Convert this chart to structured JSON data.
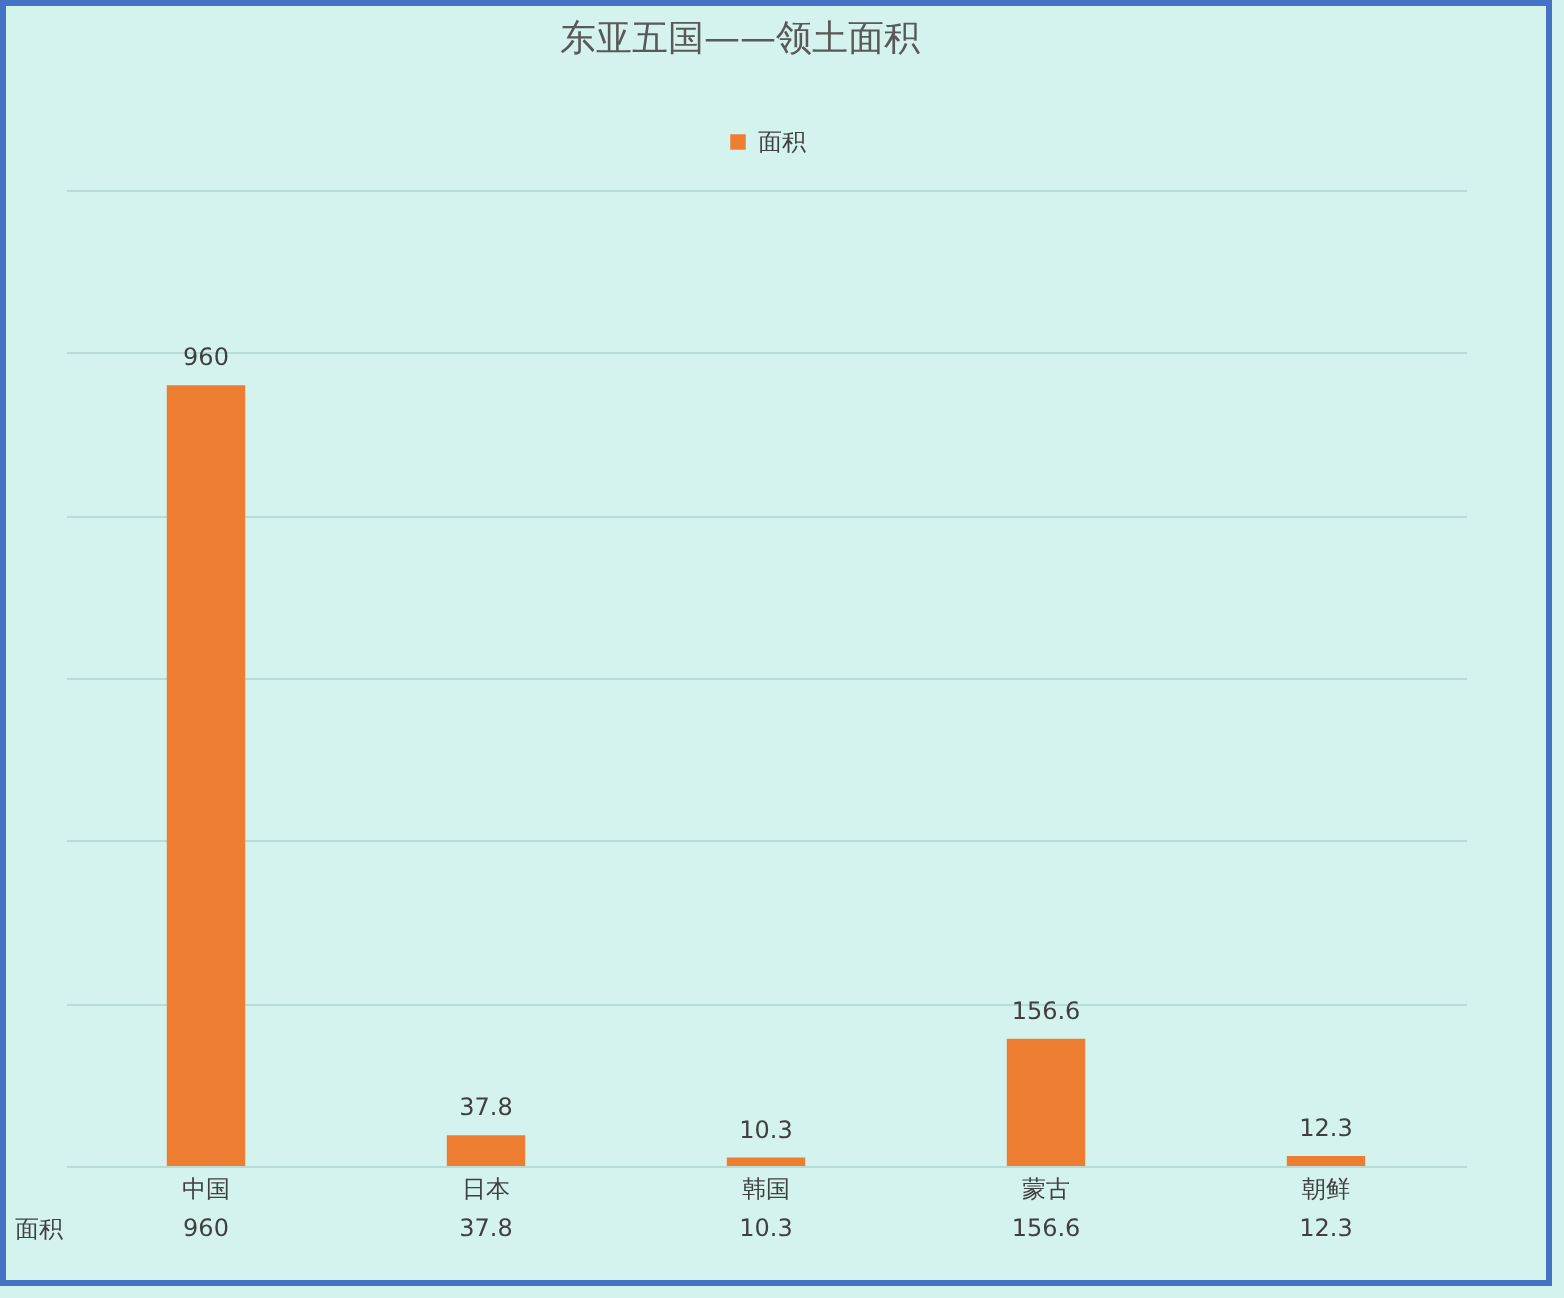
{
  "chart_data": {
    "type": "bar",
    "title": "东亚五国——领土面积",
    "categories": [
      "中国",
      "日本",
      "韩国",
      "蒙古",
      "朝鲜"
    ],
    "series": [
      {
        "name": "面积",
        "color": "#ed7d31",
        "values": [
          960,
          37.8,
          10.3,
          156.6,
          12.3
        ],
        "value_labels": [
          "960",
          "37.8",
          "10.3",
          "156.6",
          "12.3"
        ]
      }
    ],
    "ylim": [
      0,
      1200
    ],
    "yticks": [
      {
        "value": 0,
        "label": null
      },
      {
        "value": 200,
        "label": null
      },
      {
        "value": 400,
        "label": null
      },
      {
        "value": 600,
        "label": null
      },
      {
        "value": 800,
        "label": null
      },
      {
        "value": 1000,
        "label": null
      },
      {
        "value": 1200,
        "label": null
      }
    ],
    "annotations": [
      "960",
      "37.8",
      "10.3",
      "156.6",
      "12.3"
    ],
    "grid": "y",
    "legend": "top",
    "tick_labels": "x"
  }
}
